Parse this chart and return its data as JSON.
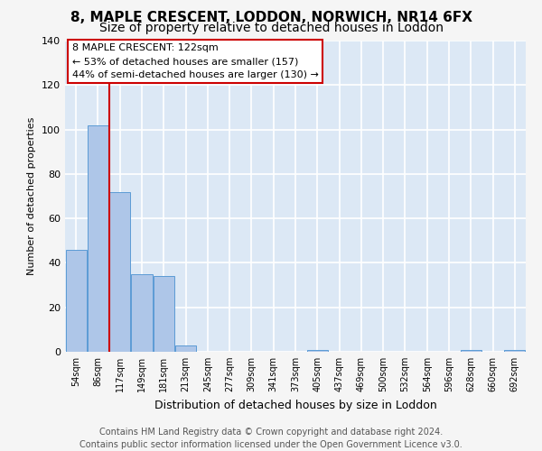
{
  "title_line1": "8, MAPLE CRESCENT, LODDON, NORWICH, NR14 6FX",
  "title_line2": "Size of property relative to detached houses in Loddon",
  "xlabel": "Distribution of detached houses by size in Loddon",
  "ylabel": "Number of detached properties",
  "bar_color": "#aec6e8",
  "bar_edge_color": "#5b9bd5",
  "vline_color": "#cc0000",
  "vline_x": 2,
  "categories": [
    "54sqm",
    "86sqm",
    "117sqm",
    "149sqm",
    "181sqm",
    "213sqm",
    "245sqm",
    "277sqm",
    "309sqm",
    "341sqm",
    "373sqm",
    "405sqm",
    "437sqm",
    "469sqm",
    "500sqm",
    "532sqm",
    "564sqm",
    "596sqm",
    "628sqm",
    "660sqm",
    "692sqm"
  ],
  "values": [
    46,
    102,
    72,
    35,
    34,
    3,
    0,
    0,
    0,
    0,
    0,
    1,
    0,
    0,
    0,
    0,
    0,
    0,
    1,
    0,
    1
  ],
  "ylim": [
    0,
    140
  ],
  "yticks": [
    0,
    20,
    40,
    60,
    80,
    100,
    120,
    140
  ],
  "annotation_text": "8 MAPLE CRESCENT: 122sqm\n← 53% of detached houses are smaller (157)\n44% of semi-detached houses are larger (130) →",
  "footer_line1": "Contains HM Land Registry data © Crown copyright and database right 2024.",
  "footer_line2": "Contains public sector information licensed under the Open Government Licence v3.0.",
  "background_color": "#dce8f5",
  "grid_color": "#ffffff",
  "fig_background": "#f5f5f5",
  "title_fontsize": 11,
  "subtitle_fontsize": 10,
  "annotation_fontsize": 8,
  "footer_fontsize": 7,
  "ylabel_fontsize": 8,
  "xlabel_fontsize": 9
}
